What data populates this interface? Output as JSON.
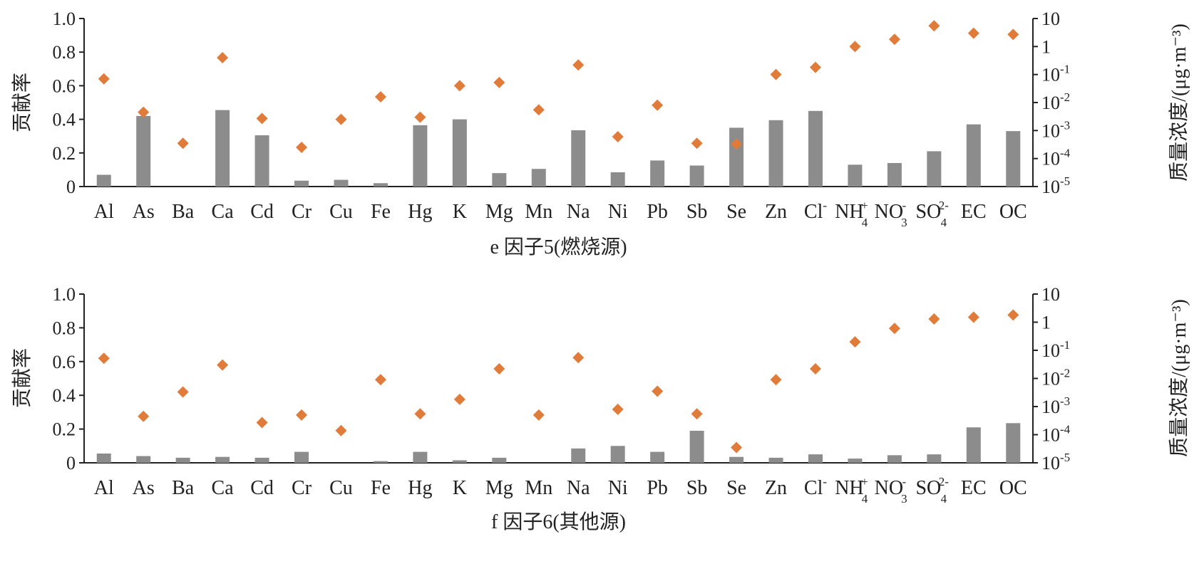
{
  "colors": {
    "bar": "#8c8c8c",
    "marker": "#e07b39",
    "axis": "#222222"
  },
  "chart_data": [
    {
      "type": "bar",
      "caption": "e 因子5(燃烧源)",
      "ylabel": "贡献率",
      "y2label": "质量浓度/(μg·m⁻³)",
      "ylim": [
        0,
        1.0
      ],
      "y2lim": [
        1e-05,
        10
      ],
      "y2_scale": "log",
      "y_ticks": [
        "0",
        "0.2",
        "0.4",
        "0.6",
        "0.8",
        "1.0"
      ],
      "y2_ticks": [
        {
          "base": "10",
          "exp": "-5"
        },
        {
          "base": "10",
          "exp": "-4"
        },
        {
          "base": "10",
          "exp": "-3"
        },
        {
          "base": "10",
          "exp": "-2"
        },
        {
          "base": "10",
          "exp": "-1"
        },
        {
          "base": "1",
          "exp": ""
        },
        {
          "base": "10",
          "exp": ""
        }
      ],
      "categories": [
        {
          "base": "Al"
        },
        {
          "base": "As"
        },
        {
          "base": "Ba"
        },
        {
          "base": "Ca"
        },
        {
          "base": "Cd"
        },
        {
          "base": "Cr"
        },
        {
          "base": "Cu"
        },
        {
          "base": "Fe"
        },
        {
          "base": "Hg"
        },
        {
          "base": "K"
        },
        {
          "base": "Mg"
        },
        {
          "base": "Mn"
        },
        {
          "base": "Na"
        },
        {
          "base": "Ni"
        },
        {
          "base": "Pb"
        },
        {
          "base": "Sb"
        },
        {
          "base": "Se"
        },
        {
          "base": "Zn"
        },
        {
          "base": "Cl",
          "sup": "-"
        },
        {
          "base": "NH",
          "sup": "+",
          "sub": "4"
        },
        {
          "base": "NO",
          "sup": "-",
          "sub": "3"
        },
        {
          "base": "SO",
          "sup": "2-",
          "sub": "4"
        },
        {
          "base": "EC"
        },
        {
          "base": "OC"
        }
      ],
      "series": [
        {
          "kind": "bar",
          "values": [
            0.07,
            0.42,
            0.0,
            0.455,
            0.305,
            0.035,
            0.04,
            0.02,
            0.365,
            0.4,
            0.08,
            0.105,
            0.335,
            0.085,
            0.155,
            0.125,
            0.35,
            0.395,
            0.45,
            0.13,
            0.14,
            0.21,
            0.37,
            0.33
          ]
        },
        {
          "kind": "scatter",
          "values": [
            0.07,
            0.0045,
            0.00035,
            0.4,
            0.0027,
            0.00025,
            0.0025,
            0.016,
            0.003,
            0.04,
            0.052,
            0.0055,
            0.22,
            0.0006,
            0.008,
            0.00035,
            0.00033,
            0.1,
            0.18,
            1.0,
            1.8,
            5.5,
            3.0,
            2.7
          ]
        }
      ]
    },
    {
      "type": "bar",
      "caption": "f 因子6(其他源)",
      "ylabel": "贡献率",
      "y2label": "质量浓度/(μg·m⁻³)",
      "ylim": [
        0,
        1.0
      ],
      "y2lim": [
        1e-05,
        10
      ],
      "y2_scale": "log",
      "y_ticks": [
        "0",
        "0.2",
        "0.4",
        "0.6",
        "0.8",
        "1.0"
      ],
      "y2_ticks": [
        {
          "base": "10",
          "exp": "-5"
        },
        {
          "base": "10",
          "exp": "-4"
        },
        {
          "base": "10",
          "exp": "-3"
        },
        {
          "base": "10",
          "exp": "-2"
        },
        {
          "base": "10",
          "exp": "-1"
        },
        {
          "base": "1",
          "exp": ""
        },
        {
          "base": "10",
          "exp": ""
        }
      ],
      "categories": [
        {
          "base": "Al"
        },
        {
          "base": "As"
        },
        {
          "base": "Ba"
        },
        {
          "base": "Ca"
        },
        {
          "base": "Cd"
        },
        {
          "base": "Cr"
        },
        {
          "base": "Cu"
        },
        {
          "base": "Fe"
        },
        {
          "base": "Hg"
        },
        {
          "base": "K"
        },
        {
          "base": "Mg"
        },
        {
          "base": "Mn"
        },
        {
          "base": "Na"
        },
        {
          "base": "Ni"
        },
        {
          "base": "Pb"
        },
        {
          "base": "Sb"
        },
        {
          "base": "Se"
        },
        {
          "base": "Zn"
        },
        {
          "base": "Cl",
          "sup": "-"
        },
        {
          "base": "NH",
          "sup": "+",
          "sub": "4"
        },
        {
          "base": "NO",
          "sup": "-",
          "sub": "3"
        },
        {
          "base": "SO",
          "sup": "2-",
          "sub": "4"
        },
        {
          "base": "EC"
        },
        {
          "base": "OC"
        }
      ],
      "series": [
        {
          "kind": "bar",
          "values": [
            0.055,
            0.04,
            0.03,
            0.035,
            0.03,
            0.065,
            0.0,
            0.01,
            0.065,
            0.015,
            0.03,
            0.0,
            0.085,
            0.1,
            0.065,
            0.19,
            0.035,
            0.03,
            0.05,
            0.025,
            0.045,
            0.05,
            0.21,
            0.235
          ]
        },
        {
          "kind": "scatter",
          "values": [
            0.052,
            0.00045,
            0.0033,
            0.03,
            0.00027,
            0.0005,
            0.00014,
            0.009,
            0.00055,
            0.0018,
            0.022,
            0.0005,
            0.055,
            0.0008,
            0.0035,
            0.00055,
            3.5e-05,
            0.009,
            0.022,
            0.2,
            0.6,
            1.3,
            1.5,
            1.8
          ]
        }
      ]
    }
  ]
}
